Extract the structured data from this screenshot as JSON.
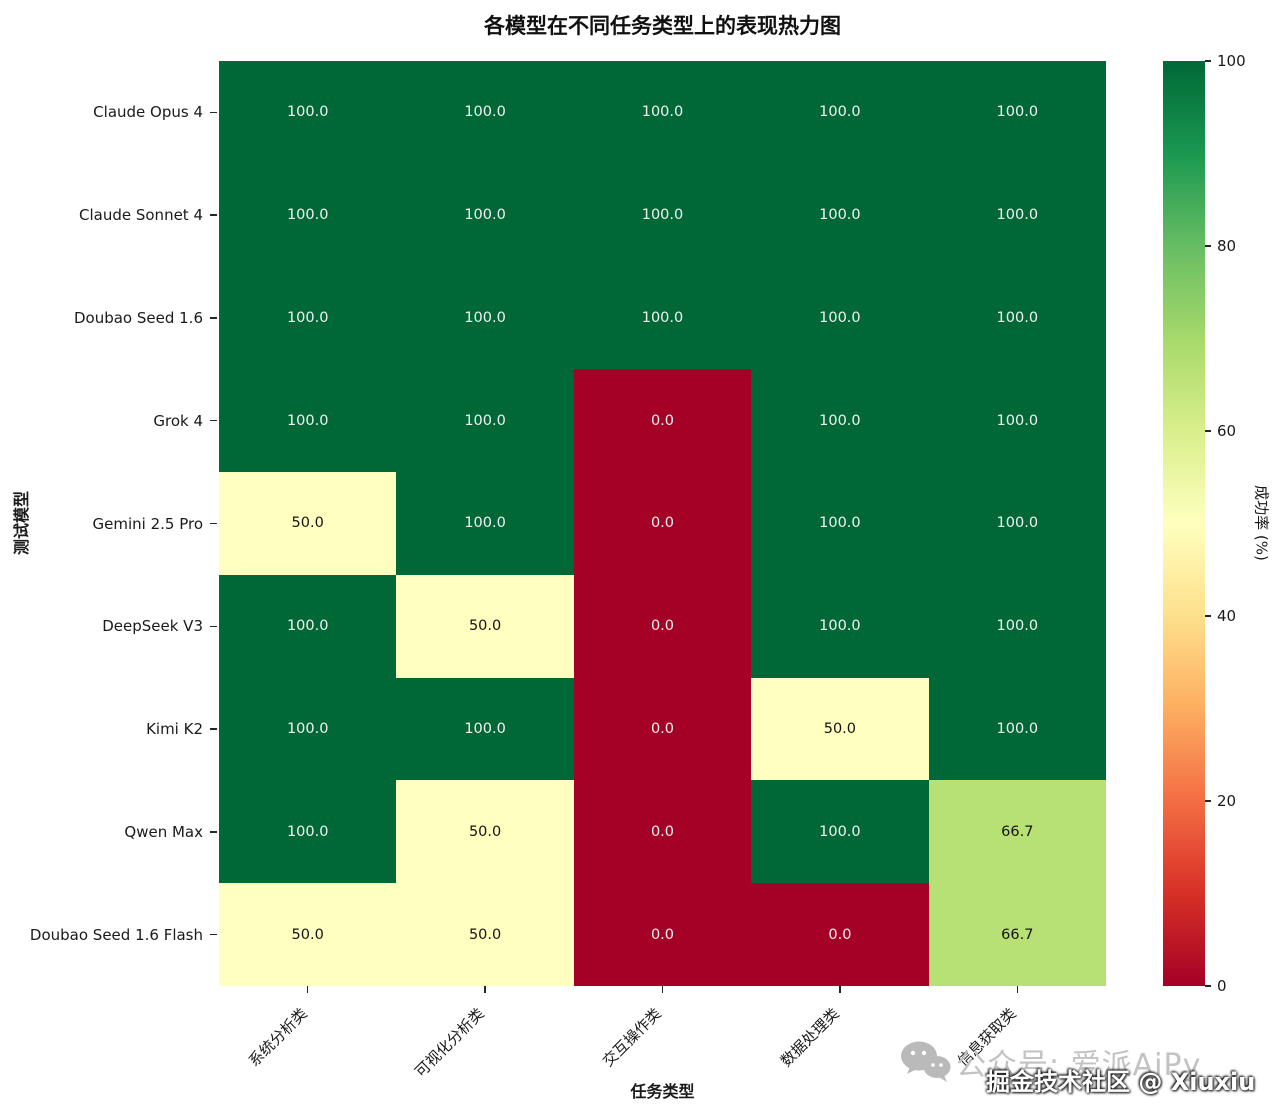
{
  "title": "各模型在不同任务类型上的表现热力图",
  "chart_data": {
    "type": "heatmap",
    "title": "各模型在不同任务类型上的表现热力图",
    "xlabel": "任务类型",
    "ylabel": "测试模型",
    "x_categories": [
      "系统分析类",
      "可视化分析类",
      "交互操作类",
      "数据处理类",
      "信息获取类"
    ],
    "y_categories": [
      "Claude Opus 4",
      "Claude Sonnet 4",
      "Doubao Seed 1.6",
      "Grok 4",
      "Gemini 2.5 Pro",
      "DeepSeek V3",
      "Kimi K2",
      "Qwen Max",
      "Doubao Seed 1.6 Flash"
    ],
    "values": [
      [
        100.0,
        100.0,
        100.0,
        100.0,
        100.0
      ],
      [
        100.0,
        100.0,
        100.0,
        100.0,
        100.0
      ],
      [
        100.0,
        100.0,
        100.0,
        100.0,
        100.0
      ],
      [
        100.0,
        100.0,
        0.0,
        100.0,
        100.0
      ],
      [
        50.0,
        100.0,
        0.0,
        100.0,
        100.0
      ],
      [
        100.0,
        50.0,
        0.0,
        100.0,
        100.0
      ],
      [
        100.0,
        100.0,
        0.0,
        50.0,
        100.0
      ],
      [
        100.0,
        50.0,
        0.0,
        100.0,
        66.7
      ],
      [
        50.0,
        50.0,
        0.0,
        0.0,
        66.7
      ]
    ],
    "colorbar": {
      "label": "成功率 (%)",
      "min": 0,
      "max": 100,
      "ticks": [
        100,
        80,
        60,
        40,
        20,
        0
      ]
    },
    "colormap": {
      "name": "RdYlGn",
      "anchors": [
        {
          "t": 0.0,
          "hex": "#a50026"
        },
        {
          "t": 0.1,
          "hex": "#d73027"
        },
        {
          "t": 0.2,
          "hex": "#f46d43"
        },
        {
          "t": 0.3,
          "hex": "#fdae61"
        },
        {
          "t": 0.4,
          "hex": "#fee08b"
        },
        {
          "t": 0.5,
          "hex": "#ffffbf"
        },
        {
          "t": 0.6,
          "hex": "#d9ef8b"
        },
        {
          "t": 0.7,
          "hex": "#a6d96a"
        },
        {
          "t": 0.8,
          "hex": "#66bd63"
        },
        {
          "t": 0.9,
          "hex": "#1a9850"
        },
        {
          "t": 1.0,
          "hex": "#006837"
        }
      ]
    },
    "legend_position": "right",
    "grid": false
  },
  "watermark": {
    "wechat_text": "公众号: 爱派AiPy",
    "community_text": "掘金技术社区 @ Xiuxiu",
    "icon": "wechat-icon"
  }
}
